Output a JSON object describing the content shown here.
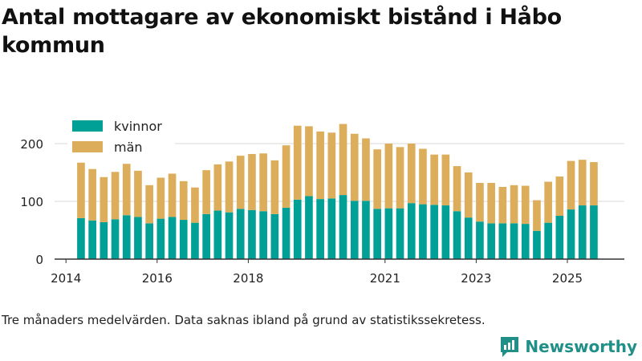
{
  "colors": {
    "kvinnor": "#00a097",
    "man": "#dcae5b",
    "grid": "#d9d9d9",
    "axis": "#333333",
    "brand": "#1f8f87"
  },
  "caption": "Tre månaders medelvärden. Data saknas ibland på grund av statistikssekretess.",
  "brand": {
    "name": "Newsworthy",
    "logo_icon": "newsworthy-logo-icon"
  },
  "chart_data": {
    "type": "bar",
    "stacked": true,
    "title": "Antal mottagare av ekonomiskt bistånd i Håbo kommun",
    "xlabel": "",
    "ylabel": "",
    "ylim": [
      0,
      250
    ],
    "yticks": [
      0,
      100,
      200
    ],
    "xlim": [
      2013.75,
      2026.25
    ],
    "xticks": [
      {
        "label": "2014",
        "value": 2014.0
      },
      {
        "label": "2016",
        "value": 2016.0
      },
      {
        "label": "2018",
        "value": 2018.0
      },
      {
        "label": "2021",
        "value": 2021.0
      },
      {
        "label": "2023",
        "value": 2023.0
      },
      {
        "label": "2025",
        "value": 2025.0
      }
    ],
    "legend": {
      "position": "top-left",
      "entries": [
        "kvinnor",
        "män"
      ]
    },
    "bar_width_years": 0.17,
    "x": [
      2014.33,
      2014.58,
      2014.83,
      2015.08,
      2015.33,
      2015.58,
      2015.83,
      2016.08,
      2016.33,
      2016.58,
      2016.83,
      2017.08,
      2017.33,
      2017.58,
      2017.83,
      2018.08,
      2018.33,
      2018.58,
      2018.83,
      2019.08,
      2019.33,
      2019.58,
      2019.83,
      2020.08,
      2020.33,
      2020.58,
      2020.83,
      2021.08,
      2021.33,
      2021.58,
      2021.83,
      2022.08,
      2022.33,
      2022.58,
      2022.83,
      2023.08,
      2023.33,
      2023.58,
      2023.83,
      2024.08,
      2024.33,
      2024.58,
      2024.83,
      2025.08,
      2025.33,
      2025.58
    ],
    "series": [
      {
        "name": "kvinnor",
        "values": [
          71,
          67,
          64,
          69,
          76,
          73,
          62,
          70,
          73,
          68,
          63,
          78,
          84,
          81,
          87,
          85,
          83,
          78,
          89,
          103,
          109,
          104,
          105,
          111,
          101,
          101,
          87,
          88,
          88,
          97,
          95,
          94,
          93,
          83,
          72,
          65,
          62,
          62,
          62,
          61,
          49,
          63,
          75,
          86,
          93,
          93
        ]
      },
      {
        "name": "män",
        "values": [
          96,
          89,
          78,
          82,
          89,
          80,
          66,
          71,
          75,
          67,
          61,
          76,
          80,
          88,
          92,
          97,
          100,
          93,
          108,
          128,
          121,
          117,
          114,
          123,
          116,
          108,
          103,
          112,
          106,
          103,
          96,
          87,
          88,
          78,
          78,
          67,
          70,
          63,
          66,
          66,
          53,
          71,
          68,
          84,
          79,
          75
        ]
      }
    ]
  }
}
